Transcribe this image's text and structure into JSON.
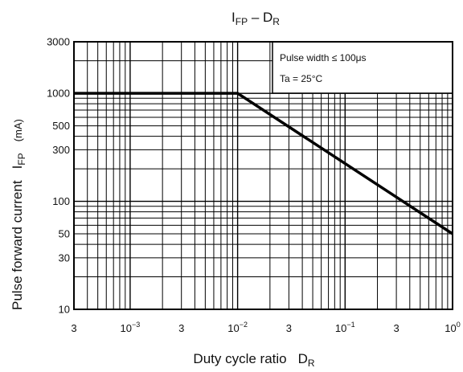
{
  "chart_data": {
    "type": "line",
    "title": {
      "main": "I",
      "main_sub": "FP",
      "sep": " – ",
      "right": "D",
      "right_sub": "R"
    },
    "xlabel": {
      "text": "Duty cycle ratio",
      "sym": "D",
      "sub": "R"
    },
    "ylabel": {
      "text": "Pulse forward current",
      "sym": "I",
      "sub": "FP",
      "unit": "(mA)"
    },
    "x_scale": "log",
    "y_scale": "log",
    "xlim": [
      0.0003,
      1
    ],
    "ylim": [
      10,
      3000
    ],
    "x_ticks": [
      {
        "value": 0.0003,
        "label": "3"
      },
      {
        "value": 0.001,
        "base": "10",
        "exp": "−3"
      },
      {
        "value": 0.003,
        "label": "3"
      },
      {
        "value": 0.01,
        "base": "10",
        "exp": "−2"
      },
      {
        "value": 0.03,
        "label": "3"
      },
      {
        "value": 0.1,
        "base": "10",
        "exp": "−1"
      },
      {
        "value": 0.3,
        "label": "3"
      },
      {
        "value": 1,
        "base": "10",
        "exp": "0"
      }
    ],
    "y_ticks": [
      {
        "value": 10,
        "label": "10"
      },
      {
        "value": 30,
        "label": "30"
      },
      {
        "value": 50,
        "label": "50"
      },
      {
        "value": 100,
        "label": "100"
      },
      {
        "value": 300,
        "label": "300"
      },
      {
        "value": 500,
        "label": "500"
      },
      {
        "value": 1000,
        "label": "1000"
      },
      {
        "value": 3000,
        "label": "3000"
      }
    ],
    "grid": true,
    "annotation": {
      "lines": [
        "Pulse width ≤ 100μs",
        "Ta = 25°C"
      ],
      "placement": "top-right"
    },
    "series": [
      {
        "x": [
          0.0003,
          0.01,
          1
        ],
        "y": [
          1000,
          1000,
          50
        ]
      }
    ]
  }
}
